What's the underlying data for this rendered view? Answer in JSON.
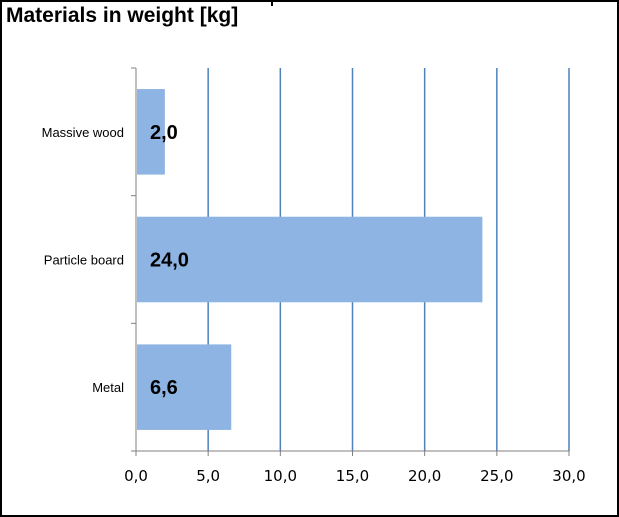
{
  "chart_data": {
    "type": "bar",
    "orientation": "horizontal",
    "title": "Materials in weight [kg]",
    "categories": [
      "Massive wood",
      "Particle board",
      "Metal"
    ],
    "values": [
      2.0,
      24.0,
      6.6
    ],
    "data_labels": [
      "2,0",
      "24,0",
      "6,6"
    ],
    "xlim": [
      0,
      30
    ],
    "x_ticks": [
      "0,0",
      "5,0",
      "10,0",
      "15,0",
      "20,0",
      "25,0",
      "30,0"
    ],
    "grid": "vertical",
    "legend": "none",
    "colors": {
      "bar": "#8EB4E3",
      "grid": "#4F81BD",
      "axis": "#808080"
    }
  }
}
